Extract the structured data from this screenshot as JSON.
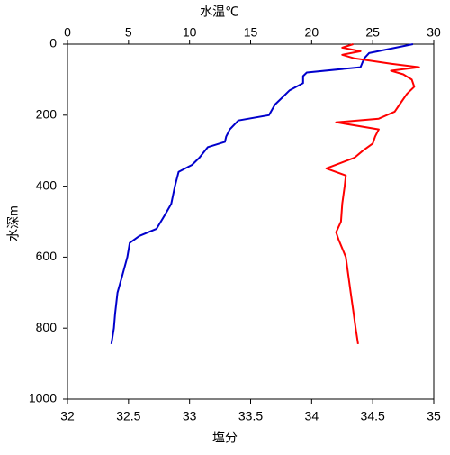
{
  "chart_data": {
    "type": "line",
    "x_label": "塩分",
    "x2_label": "水温℃",
    "y_label": "水深m",
    "xlim": [
      32,
      35
    ],
    "xticks": [
      32,
      32.5,
      33,
      33.5,
      34,
      34.5,
      35
    ],
    "x2lim": [
      0,
      30
    ],
    "x2ticks": [
      0,
      5,
      10,
      15,
      20,
      25,
      30
    ],
    "ylim": [
      0,
      1000
    ],
    "yticks": [
      0,
      200,
      400,
      600,
      800,
      1000
    ],
    "y_reversed": true,
    "series": [
      {
        "color": "#0000cc",
        "axis": "x2",
        "x": [
          28.3,
          26.9,
          24.7,
          24.3,
          24.0,
          19.6,
          19.3,
          19.3,
          18.2,
          17.6,
          17.0,
          16.5,
          14.0,
          13.3,
          13.0,
          12.9,
          11.5,
          10.8,
          10.2,
          9.1,
          8.8,
          8.5,
          8.0,
          7.3,
          5.9,
          5.1,
          4.9,
          4.5,
          4.1,
          3.9,
          3.8,
          3.6
        ],
        "y": [
          0,
          10,
          25,
          40,
          65,
          80,
          90,
          110,
          130,
          150,
          170,
          200,
          215,
          240,
          260,
          275,
          290,
          320,
          340,
          360,
          400,
          450,
          480,
          520,
          540,
          560,
          600,
          650,
          700,
          760,
          800,
          845
        ]
      },
      {
        "color": "#ff0000",
        "x": [
          34.34,
          34.25,
          34.4,
          34.25,
          34.35,
          34.65,
          34.88,
          34.65,
          34.75,
          34.82,
          34.84,
          34.78,
          34.72,
          34.68,
          34.55,
          34.2,
          34.55,
          34.52,
          34.5,
          34.42,
          34.35,
          34.12,
          34.28,
          34.27,
          34.25,
          34.24,
          34.2,
          34.22,
          34.28,
          34.3,
          34.32,
          34.34,
          34.36,
          34.38
        ],
        "y": [
          0,
          10,
          20,
          30,
          40,
          55,
          65,
          75,
          85,
          100,
          120,
          140,
          170,
          190,
          210,
          220,
          240,
          260,
          280,
          300,
          320,
          350,
          370,
          400,
          450,
          500,
          530,
          550,
          600,
          650,
          700,
          750,
          800,
          845
        ]
      }
    ]
  }
}
